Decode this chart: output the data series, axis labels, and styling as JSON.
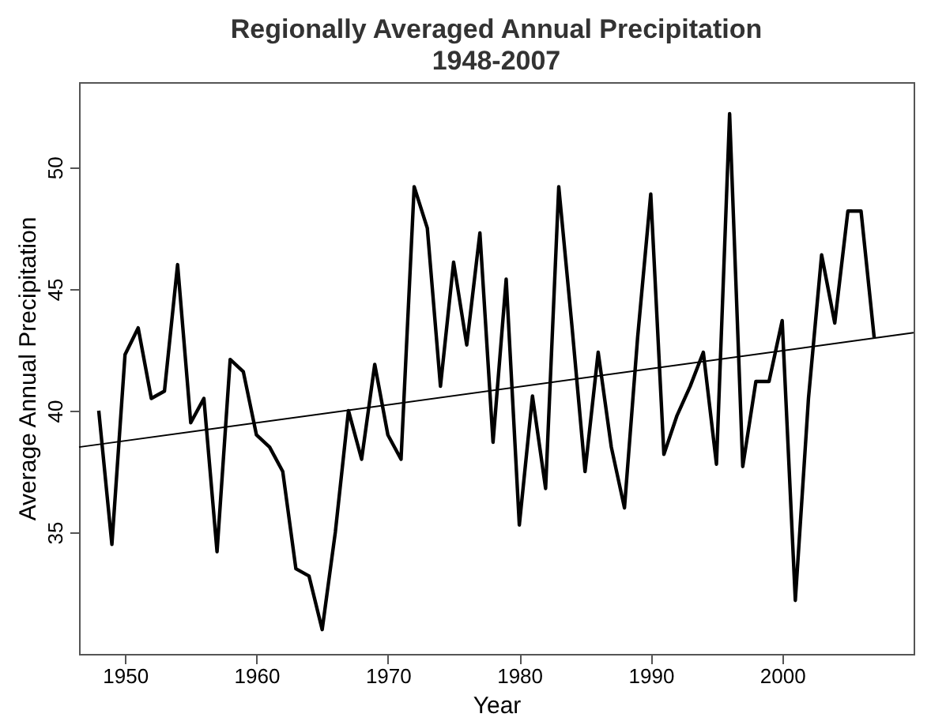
{
  "chart_data": {
    "type": "line",
    "title": "Regionally Averaged Annual Precipitation",
    "subtitle": "1948-2007",
    "xlabel": "Year",
    "ylabel": "Average Annual Precipitation",
    "series": [
      {
        "color": "#000000",
        "x": [
          1948,
          1949,
          1950,
          1951,
          1952,
          1953,
          1954,
          1955,
          1956,
          1957,
          1958,
          1959,
          1960,
          1961,
          1962,
          1963,
          1964,
          1965,
          1966,
          1967,
          1968,
          1969,
          1970,
          1971,
          1972,
          1973,
          1974,
          1975,
          1976,
          1977,
          1978,
          1979,
          1980,
          1981,
          1982,
          1983,
          1984,
          1985,
          1986,
          1987,
          1988,
          1989,
          1990,
          1991,
          1992,
          1993,
          1994,
          1995,
          1996,
          1997,
          1998,
          1999,
          2000,
          2001,
          2002,
          2003,
          2004,
          2005,
          2006,
          2007
        ],
        "values": [
          40,
          34.5,
          42.3,
          43.4,
          40.5,
          40.8,
          46,
          39.5,
          40.5,
          34.2,
          42.1,
          41.6,
          39,
          38.5,
          37.5,
          33.5,
          33.2,
          31,
          35,
          40,
          38,
          41.9,
          39,
          38,
          49.2,
          47.5,
          41,
          46.1,
          42.7,
          47.3,
          38.7,
          45.4,
          35.3,
          40.6,
          36.8,
          49.2,
          43.5,
          37.5,
          42.4,
          38.5,
          36,
          43,
          48.9,
          38.2,
          39.8,
          41,
          42.4,
          37.8,
          52.2,
          37.7,
          41.2,
          41.2,
          43.7,
          32.2,
          40.5,
          46.4,
          43.6,
          48.2,
          48.2,
          43
        ]
      },
      {
        "color": "#000000",
        "type": "line",
        "x": [
          1946.5,
          2010
        ],
        "values": [
          38.5,
          43.2
        ]
      }
    ],
    "xlim": [
      1946.5,
      2010
    ],
    "xticks": [
      1950,
      1960,
      1970,
      1980,
      1990,
      2000
    ],
    "ylim": [
      30,
      53.5
    ],
    "yticks": [
      35,
      40,
      45,
      50
    ],
    "grid": false
  }
}
